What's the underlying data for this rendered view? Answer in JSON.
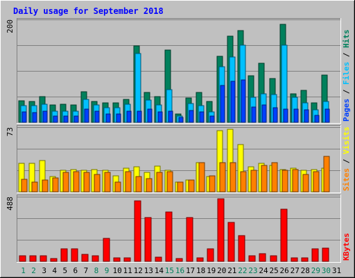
{
  "chart_data": {
    "type": "bar",
    "title": "Daily usage for September 2018",
    "x": [
      1,
      2,
      3,
      4,
      5,
      6,
      7,
      8,
      9,
      10,
      11,
      12,
      13,
      14,
      15,
      16,
      17,
      18,
      19,
      20,
      21,
      22,
      23,
      24,
      25,
      26,
      27,
      28,
      29,
      30,
      31
    ],
    "weekend_days": [
      1,
      2,
      8,
      9,
      15,
      16,
      22,
      23,
      29,
      30
    ],
    "panels": [
      {
        "name": "hits-files-pages",
        "ymax_label": "200",
        "ylim": [
          0,
          200
        ],
        "right_labels": [
          "Pages",
          "Files",
          "Hits"
        ],
        "series": [
          {
            "name": "Hits",
            "color": "#00805C",
            "values": [
              42,
              40,
              50,
              34,
              35,
              34,
              60,
              40,
              38,
              38,
              44,
              148,
              58,
              50,
              140,
              16,
              47,
              58,
              40,
              128,
              168,
              178,
              90,
              115,
              85,
              190,
              55,
              62,
              38,
              92
            ]
          },
          {
            "name": "Files",
            "color": "#00C0FF",
            "values": [
              33,
              32,
              35,
              22,
              21,
              21,
              44,
              34,
              28,
              28,
              35,
              134,
              43,
              34,
              64,
              12,
              36,
              33,
              20,
              108,
              127,
              150,
              48,
              56,
              54,
              150,
              48,
              38,
              24,
              40
            ]
          },
          {
            "name": "Pages",
            "color": "#0040FF",
            "values": [
              20,
              19,
              22,
              12,
              12,
              12,
              26,
              22,
              16,
              16,
              21,
              22,
              26,
              20,
              22,
              10,
              23,
              20,
              12,
              72,
              80,
              82,
              30,
              34,
              28,
              26,
              26,
              24,
              14,
              26
            ]
          }
        ]
      },
      {
        "name": "visits-sites",
        "ymax_label": "73",
        "ylim": [
          0,
          73
        ],
        "right_labels": [
          "Sites",
          "Visits"
        ],
        "series": [
          {
            "name": "Visits",
            "color": "#FFFF00",
            "values": [
              32,
              32,
              35,
              17,
              24,
              25,
              24,
              25,
              24,
              18,
              27,
              28,
              22,
              29,
              24,
              11,
              13,
              33,
              17,
              69,
              71,
              53,
              28,
              32,
              30,
              25,
              27,
              24,
              25,
              27
            ]
          },
          {
            "name": "Sites",
            "color": "#FF8000",
            "values": [
              14,
              11,
              13,
              16,
              22,
              23,
              22,
              20,
              22,
              11,
              23,
              17,
              15,
              22,
              23,
              11,
              13,
              33,
              18,
              33,
              33,
              23,
              24,
              30,
              33,
              24,
              25,
              20,
              23,
              40
            ]
          }
        ]
      },
      {
        "name": "kbytes",
        "ymax_label": "488",
        "ylim": [
          0,
          488
        ],
        "right_labels": [
          "KBytes"
        ],
        "series": [
          {
            "name": "KBytes",
            "color": "#FF0000",
            "values": [
              40,
              40,
              42,
              20,
              95,
              95,
              50,
              40,
              175,
              27,
              28,
              458,
              330,
              30,
              375,
              20,
              330,
              27,
              95,
              470,
              295,
              195,
              40,
              60,
              40,
              395,
              25,
              25,
              95,
              100
            ]
          }
        ]
      }
    ]
  }
}
